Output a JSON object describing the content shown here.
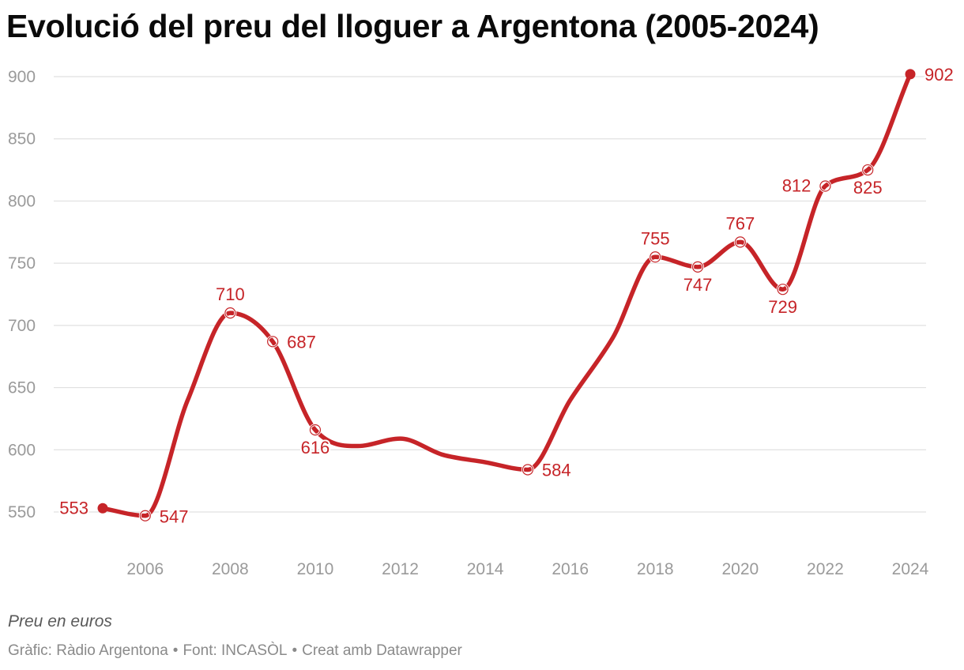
{
  "title": "Evolució del preu del lloguer a Argentona (2005-2024)",
  "notes": "Preu en euros",
  "footer": {
    "chart_by": "Gràfic: Ràdio Argentona",
    "source": "Font: INCASÒL",
    "tool": "Creat amb Datawrapper",
    "separator": "•"
  },
  "colors": {
    "line": "#c62428",
    "label": "#c62428",
    "grid": "#e0e0e0",
    "tick": "#9a9a9a"
  },
  "chart_data": {
    "type": "line",
    "title": "Evolució del preu del lloguer a Argentona (2005-2024)",
    "xlabel": "",
    "ylabel": "",
    "xlim": [
      2005,
      2024
    ],
    "ylim": [
      550,
      900
    ],
    "yticks": [
      550,
      600,
      650,
      700,
      750,
      800,
      850,
      900
    ],
    "xticks": [
      2006,
      2008,
      2010,
      2012,
      2014,
      2016,
      2018,
      2020,
      2022,
      2024
    ],
    "grid": true,
    "series": [
      {
        "x": [
          2005,
          2006,
          2007,
          2008,
          2009,
          2010,
          2011,
          2012,
          2013,
          2014,
          2015,
          2016,
          2017,
          2018,
          2019,
          2020,
          2021,
          2022,
          2023,
          2024
        ],
        "values": [
          553,
          547,
          640,
          710,
          687,
          616,
          603,
          609,
          596,
          590,
          584,
          640,
          690,
          755,
          747,
          767,
          729,
          812,
          825,
          902
        ]
      }
    ],
    "labeled_points": [
      {
        "x": 2005,
        "value": 553,
        "text": "553",
        "pos": "left",
        "marker": "filled"
      },
      {
        "x": 2006,
        "value": 547,
        "text": "547",
        "pos": "right-below",
        "marker": "open"
      },
      {
        "x": 2008,
        "value": 710,
        "text": "710",
        "pos": "above",
        "marker": "open"
      },
      {
        "x": 2009,
        "value": 687,
        "text": "687",
        "pos": "right",
        "marker": "open"
      },
      {
        "x": 2010,
        "value": 616,
        "text": "616",
        "pos": "below",
        "marker": "open"
      },
      {
        "x": 2015,
        "value": 584,
        "text": "584",
        "pos": "right",
        "marker": "open"
      },
      {
        "x": 2018,
        "value": 755,
        "text": "755",
        "pos": "above",
        "marker": "open"
      },
      {
        "x": 2019,
        "value": 747,
        "text": "747",
        "pos": "below",
        "marker": "open"
      },
      {
        "x": 2020,
        "value": 767,
        "text": "767",
        "pos": "above",
        "marker": "open"
      },
      {
        "x": 2021,
        "value": 729,
        "text": "729",
        "pos": "below",
        "marker": "open"
      },
      {
        "x": 2022,
        "value": 812,
        "text": "812",
        "pos": "left",
        "marker": "open"
      },
      {
        "x": 2023,
        "value": 825,
        "text": "825",
        "pos": "below",
        "marker": "open"
      },
      {
        "x": 2024,
        "value": 902,
        "text": "902",
        "pos": "right",
        "marker": "filled"
      }
    ]
  }
}
